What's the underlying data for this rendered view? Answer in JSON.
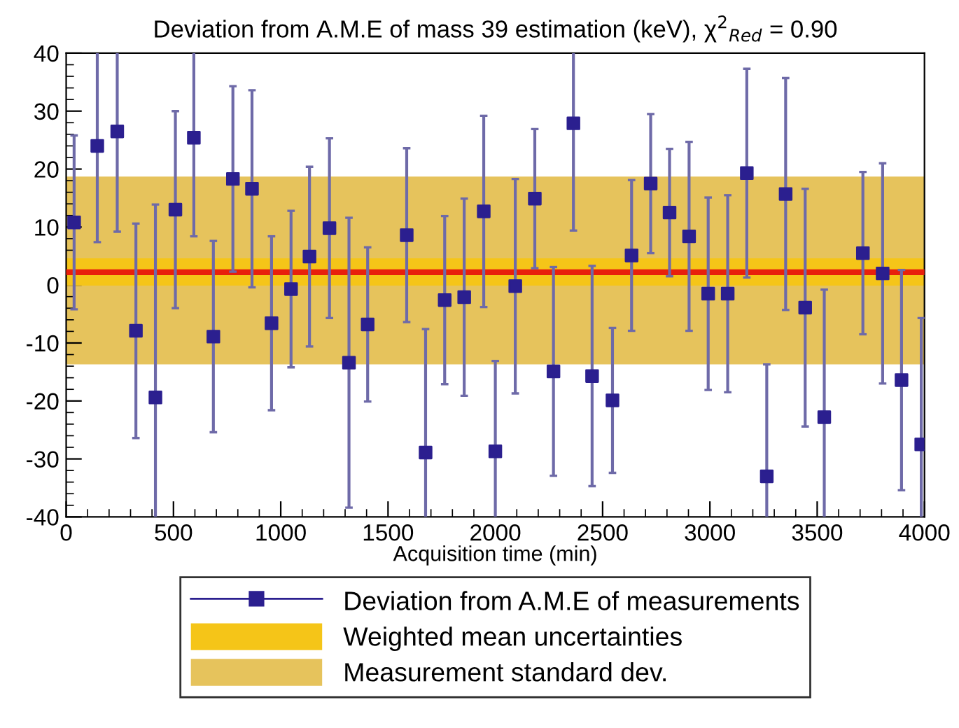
{
  "chart_data": {
    "type": "scatter",
    "title": "Deviation from A.M.E of mass 39 estimation (keV), χ$^{2}$$_{Red}$ = 0.90",
    "xlabel": "Acquisition time (min)",
    "xlim": [
      0,
      4000
    ],
    "ylim": [
      -40,
      40
    ],
    "xticks": [
      0,
      500,
      1000,
      1500,
      2000,
      2500,
      3000,
      3500,
      4000
    ],
    "yticks": [
      -40,
      -30,
      -20,
      -10,
      0,
      10,
      20,
      30,
      40
    ],
    "grid": false,
    "legend": "bottom",
    "marker": "square",
    "series": [
      {
        "name": "Deviation from A.M.E of measurements",
        "color": "#2b1f8f",
        "x": [
          37,
          145,
          238,
          325,
          416,
          509,
          595,
          686,
          777,
          866,
          957,
          1048,
          1134,
          1227,
          1318,
          1405,
          1587,
          1675,
          1764,
          1855,
          1946,
          2000,
          2093,
          2184,
          2271,
          2364,
          2451,
          2546,
          2635,
          2724,
          2812,
          2903,
          2992,
          3083,
          3172,
          3265,
          3353,
          3444,
          3533,
          3713,
          3805,
          3893,
          3985
        ],
        "values": [
          10.8,
          24,
          26.5,
          -7.9,
          -19.4,
          13,
          25.4,
          -8.9,
          18.3,
          16.6,
          -6.6,
          -0.7,
          4.9,
          9.8,
          -13.4,
          -6.8,
          8.6,
          -28.9,
          -2.6,
          -2.1,
          12.7,
          -28.7,
          -0.2,
          14.9,
          -14.9,
          27.9,
          -15.7,
          -19.9,
          5.1,
          17.5,
          12.5,
          8.4,
          -1.5,
          -1.5,
          19.3,
          -33,
          15.7,
          -3.9,
          -22.8,
          5.5,
          2,
          -16.4,
          -27.5
        ],
        "errors": [
          15,
          [
            7.4,
            40
          ],
          [
            9.2,
            40
          ],
          18.5,
          [
            -40,
            13.9
          ],
          17,
          [
            8.4,
            40
          ],
          16.5,
          16,
          17,
          15,
          13.5,
          15.5,
          15.5,
          25,
          13.3,
          15,
          [
            -40,
            -7.6
          ],
          14.5,
          17,
          16.5,
          [
            -40,
            -13.1
          ],
          18.5,
          12,
          18,
          [
            9.4,
            40
          ],
          19,
          12.5,
          13,
          12,
          11,
          16.3,
          16.6,
          17,
          18,
          [
            -40,
            -13.7
          ],
          20,
          20.5,
          [
            -40,
            -0.8
          ],
          14,
          19,
          19,
          [
            -40,
            -5.7
          ]
        ]
      }
    ],
    "bands": [
      {
        "axis": "y",
        "from": -0.1,
        "to": 4.6,
        "label": "Weighted mean uncertainties",
        "color": "#f5c518"
      },
      {
        "axis": "y",
        "from": -13.7,
        "to": 18.7,
        "label": "Measurement standard dev.",
        "color": "#e6c35c"
      }
    ],
    "ref_lines": [
      {
        "axis": "y",
        "value": 2.2,
        "color": "#e8200c",
        "line_style": "solid"
      }
    ]
  }
}
